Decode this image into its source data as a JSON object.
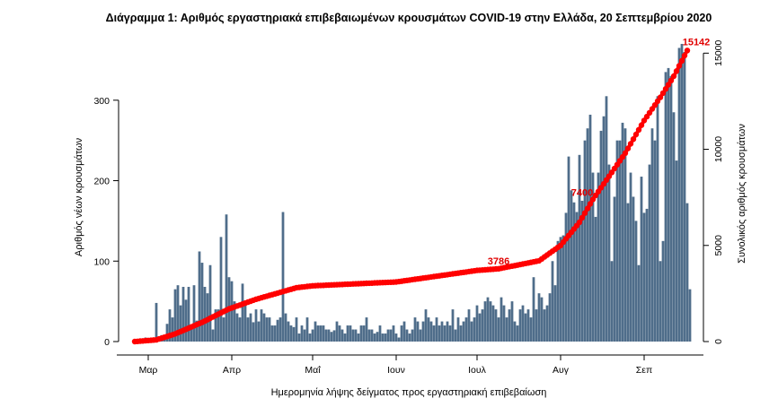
{
  "chart_data": {
    "type": "bar",
    "title": "Διάγραμμα 1: Αριθμός εργαστηριακά επιβεβαιωμένων κρουσμάτων COVID-19 στην Ελλάδα, 20 Σεπτεμβρίου 2020",
    "xlabel": "Ημερομηνία λήψης δείγματος προς εργαστηριακή επιβεβαίωση",
    "ylabel": "Αριθμός νέων κρουσμάτων",
    "y2label": "Συνολικός αριθμός κρουσμάτων",
    "ylim": [
      0,
      380
    ],
    "y2lim": [
      0,
      15900
    ],
    "yticks": [
      0,
      100,
      200,
      300
    ],
    "y2ticks": [
      0,
      5000,
      10000,
      15000
    ],
    "month_ticks": [
      {
        "label": "Μαρ",
        "day": 0
      },
      {
        "label": "Απρ",
        "day": 31
      },
      {
        "label": "Μαΐ",
        "day": 61
      },
      {
        "label": "Ιουν",
        "day": 92
      },
      {
        "label": "Ιουλ",
        "day": 122
      },
      {
        "label": "Αυγ",
        "day": 153
      },
      {
        "label": "Σεπ",
        "day": 184
      }
    ],
    "first_day": -5,
    "num_days": 205,
    "colors": {
      "bars": "#4f6d8a",
      "cumulative": "#ff0000"
    },
    "new_cases": [
      3,
      0,
      2,
      0,
      5,
      0,
      1,
      0,
      48,
      2,
      8,
      4,
      22,
      40,
      30,
      65,
      70,
      45,
      68,
      52,
      68,
      20,
      70,
      26,
      112,
      98,
      68,
      60,
      95,
      15,
      40,
      40,
      130,
      30,
      158,
      80,
      75,
      50,
      35,
      30,
      72,
      45,
      30,
      35,
      24,
      40,
      25,
      40,
      35,
      30,
      30,
      20,
      20,
      27,
      30,
      161,
      35,
      25,
      20,
      18,
      30,
      10,
      20,
      15,
      30,
      10,
      15,
      25,
      20,
      20,
      20,
      15,
      15,
      12,
      14,
      25,
      20,
      15,
      10,
      20,
      20,
      15,
      15,
      10,
      20,
      20,
      30,
      15,
      15,
      10,
      12,
      20,
      10,
      10,
      15,
      15,
      20,
      10,
      5,
      20,
      25,
      15,
      10,
      15,
      30,
      25,
      15,
      25,
      40,
      30,
      25,
      20,
      30,
      20,
      25,
      20,
      25,
      20,
      40,
      15,
      30,
      20,
      25,
      30,
      40,
      25,
      30,
      45,
      35,
      40,
      50,
      55,
      50,
      45,
      40,
      30,
      55,
      45,
      30,
      40,
      50,
      25,
      20,
      40,
      45,
      35,
      40,
      30,
      80,
      40,
      60,
      55,
      40,
      45,
      60,
      100,
      70,
      125,
      130,
      132,
      160,
      230,
      188,
      173,
      161,
      232,
      175,
      250,
      265,
      282,
      210,
      155,
      210,
      262,
      280,
      305,
      220,
      100,
      180,
      250,
      250,
      272,
      265,
      172,
      210,
      180,
      150,
      95,
      205,
      160,
      165,
      220,
      265,
      250,
      305,
      100,
      125,
      335,
      340,
      330,
      285,
      225,
      365,
      370,
      360,
      172,
      65
    ],
    "cumulative_total": [
      {
        "day": -5,
        "value": 0
      },
      {
        "day": 3,
        "value": 90
      },
      {
        "day": 10,
        "value": 400
      },
      {
        "day": 20,
        "value": 1000
      },
      {
        "day": 30,
        "value": 1700
      },
      {
        "day": 40,
        "value": 2200
      },
      {
        "day": 50,
        "value": 2600
      },
      {
        "day": 55,
        "value": 2800
      },
      {
        "day": 61,
        "value": 2900
      },
      {
        "day": 92,
        "value": 3100
      },
      {
        "day": 122,
        "value": 3700
      },
      {
        "day": 130,
        "value": 3786
      },
      {
        "day": 145,
        "value": 4200
      },
      {
        "day": 153,
        "value": 5000
      },
      {
        "day": 160,
        "value": 6200
      },
      {
        "day": 165,
        "value": 7400
      },
      {
        "day": 170,
        "value": 8400
      },
      {
        "day": 177,
        "value": 9800
      },
      {
        "day": 184,
        "value": 11500
      },
      {
        "day": 190,
        "value": 12700
      },
      {
        "day": 195,
        "value": 13800
      },
      {
        "day": 200,
        "value": 15142
      }
    ],
    "annotations": [
      {
        "text": "3786",
        "day": 130,
        "value": 3786
      },
      {
        "text": "7400",
        "day": 163,
        "value": 7400
      },
      {
        "text": "15142",
        "day": 200,
        "value": 15142
      }
    ]
  }
}
